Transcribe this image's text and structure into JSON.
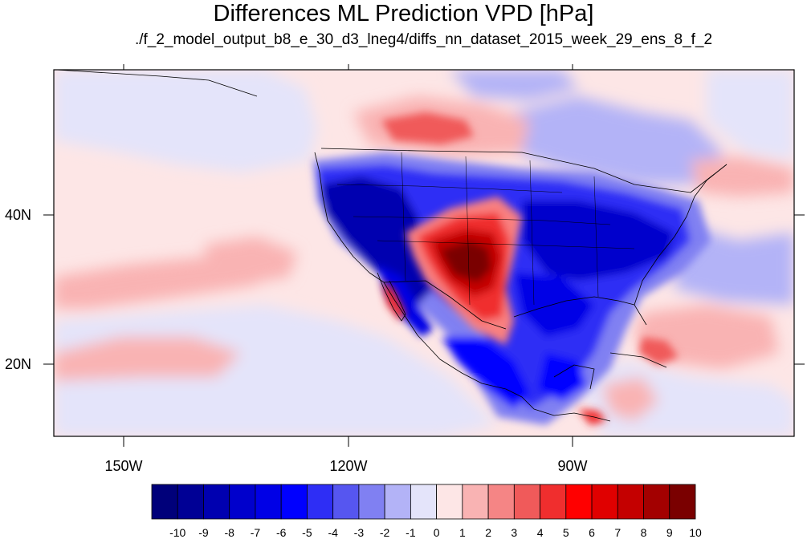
{
  "title": "Differences ML Prediction VPD [hPa]",
  "subtitle": "./f_2_model_output_b8_e_30_d3_lneg4/diffs_nn_dataset_2015_week_29_ens_8_f_2",
  "axes": {
    "lat_labels": [
      "40N",
      "20N"
    ],
    "lon_labels": [
      "150W",
      "120W",
      "90W"
    ]
  },
  "colorbar": {
    "levels": [
      "-10",
      "-9",
      "-8",
      "-7",
      "-6",
      "-5",
      "-4",
      "-3",
      "-2",
      "-1",
      "0",
      "1",
      "2",
      "3",
      "4",
      "5",
      "6",
      "7",
      "8",
      "9",
      "10"
    ],
    "colors": [
      "#00007a",
      "#000095",
      "#0000b0",
      "#0000cc",
      "#0000e6",
      "#0000ff",
      "#2e2ef5",
      "#5656f0",
      "#8080f2",
      "#b3b3f7",
      "#e4e4fa",
      "#fde6e6",
      "#f9b3b3",
      "#f58585",
      "#f05a5a",
      "#f02e2e",
      "#ff0000",
      "#e00000",
      "#c40000",
      "#a30000",
      "#7a0000"
    ]
  },
  "palette": {
    "neutral_blue": "#e4e4fa",
    "neutral_red": "#fde6e6",
    "coastline": "#000000"
  }
}
